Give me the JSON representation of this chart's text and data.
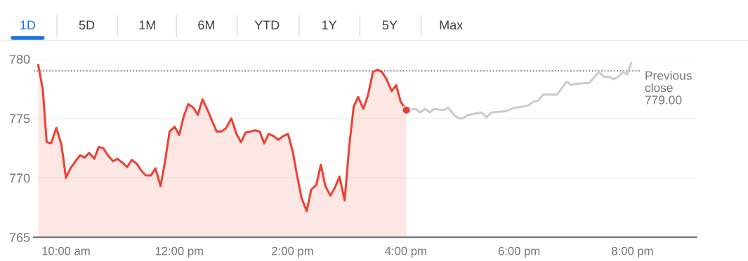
{
  "chart_data": {
    "type": "line",
    "annotations": [
      "1D",
      "5D",
      "1M",
      "6M",
      "YTD",
      "1Y",
      "5Y",
      "Max"
    ],
    "series": [
      {
        "type": "area",
        "color": "#ea4335",
        "x": [
          9.51,
          9.59,
          9.66,
          9.74,
          9.83,
          9.92,
          10.0,
          10.08,
          10.17,
          10.25,
          10.33,
          10.41,
          10.5,
          10.58,
          10.66,
          10.74,
          10.83,
          10.91,
          10.99,
          11.08,
          11.16,
          11.25,
          11.33,
          11.41,
          11.5,
          11.58,
          11.67,
          11.75,
          11.83,
          11.92,
          12.0,
          12.08,
          12.16,
          12.25,
          12.33,
          12.41,
          12.49,
          12.58,
          12.66,
          12.75,
          12.83,
          12.92,
          13.01,
          13.09,
          13.17,
          13.26,
          13.34,
          13.42,
          13.5,
          13.58,
          13.67,
          13.75,
          13.83,
          13.92,
          14.0,
          14.08,
          14.16,
          14.25,
          14.33,
          14.42,
          14.5,
          14.58,
          14.67,
          14.75,
          14.83,
          14.92,
          15.0,
          15.08,
          15.16,
          15.25,
          15.33,
          15.42,
          15.5,
          15.58,
          15.66,
          15.75,
          15.83,
          15.91,
          16.01
        ],
        "values": [
          779.5,
          777.5,
          773.0,
          772.9,
          774.2,
          772.8,
          770.0,
          770.8,
          771.4,
          771.9,
          771.7,
          772.1,
          771.6,
          772.6,
          772.5,
          771.9,
          771.4,
          771.6,
          771.3,
          770.9,
          771.5,
          771.2,
          770.6,
          770.2,
          770.2,
          770.8,
          769.3,
          771.4,
          773.9,
          774.3,
          773.6,
          775.2,
          776.2,
          775.9,
          775.3,
          776.6,
          775.8,
          774.8,
          773.9,
          773.9,
          774.2,
          775.0,
          773.7,
          773.0,
          773.8,
          773.9,
          774.0,
          773.9,
          772.9,
          773.7,
          773.5,
          773.2,
          773.5,
          773.7,
          772.3,
          770.2,
          768.3,
          767.2,
          769.0,
          769.4,
          771.1,
          769.3,
          768.5,
          769.2,
          770.1,
          768.1,
          772.6,
          776.0,
          776.8,
          775.8,
          776.9,
          778.9,
          779.1,
          778.9,
          778.3,
          777.3,
          777.8,
          776.4,
          775.7
        ]
      },
      {
        "type": "scatter",
        "color": "#e53b30",
        "x": [
          16.01
        ],
        "values": [
          775.7
        ]
      },
      {
        "color": "#cccccc",
        "x": [
          16.01,
          16.17,
          16.25,
          16.34,
          16.42,
          16.5,
          16.67,
          16.75,
          16.85,
          16.93,
          17.0,
          17.1,
          17.34,
          17.43,
          17.51,
          17.76,
          17.92,
          18.09,
          18.17,
          18.25,
          18.34,
          18.42,
          18.67,
          18.84,
          18.92,
          19.0,
          19.24,
          19.41,
          19.5,
          19.58,
          19.67,
          19.75,
          19.83,
          19.91,
          19.98
        ],
        "values": [
          775.7,
          775.8,
          775.5,
          775.8,
          775.5,
          775.8,
          775.7,
          775.9,
          775.3,
          775.0,
          775.0,
          775.3,
          775.5,
          775.1,
          775.5,
          775.6,
          775.9,
          776.0,
          776.1,
          776.4,
          776.5,
          777.0,
          777.0,
          778.1,
          777.8,
          777.9,
          778.0,
          778.9,
          778.5,
          778.5,
          778.3,
          778.5,
          778.9,
          778.7,
          779.7
        ]
      }
    ],
    "xlim": [
      9.43,
      21.13
    ],
    "xticks": [
      {
        "value": 10,
        "label": "10:00 am"
      },
      {
        "value": 12,
        "label": "12:00 pm"
      },
      {
        "value": 14,
        "label": "2:00 pm"
      },
      {
        "value": 16,
        "label": "4:00 pm"
      },
      {
        "value": 18,
        "label": "6:00 pm"
      },
      {
        "value": 20,
        "label": "8:00 pm"
      }
    ],
    "ylim": [
      765,
      780
    ],
    "yticks": [
      765,
      770,
      775,
      780
    ],
    "ref_lines": [
      {
        "axis": "y",
        "value": 779.0,
        "label": "Previous\nclose\n779.00",
        "color": "#5f6368",
        "line_style": "dotted"
      }
    ],
    "grid": "y"
  }
}
